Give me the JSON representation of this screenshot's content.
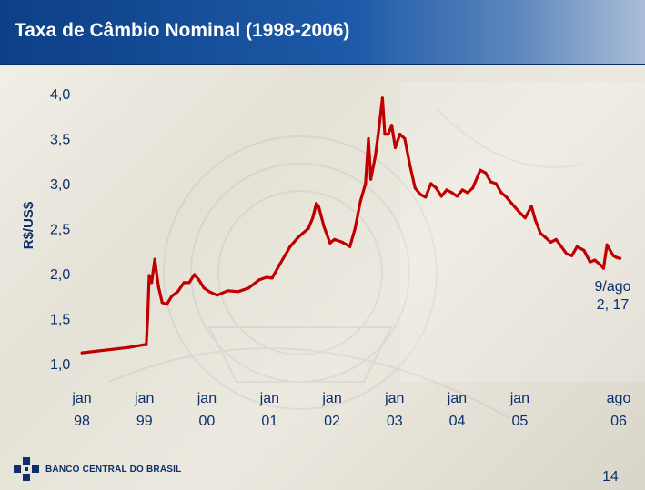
{
  "slide": {
    "title": "Taxa de Câmbio Nominal (1998-2006)",
    "page_number": "14",
    "logo_text": "BANCO CENTRAL DO BRASIL"
  },
  "colors": {
    "title_bar": "#1e5aa8",
    "series": "#c00000",
    "text": "#0c2f6b"
  },
  "chart_data": {
    "type": "line",
    "title": "Taxa de Câmbio Nominal (1998-2006)",
    "ylabel": "R$/US$",
    "xlabel": "",
    "ylim": [
      1.0,
      4.0
    ],
    "yticks": [
      1.0,
      1.5,
      2.0,
      2.5,
      3.0,
      3.5,
      4.0
    ],
    "ytick_labels": [
      "1,0",
      "1,5",
      "2,0",
      "2,5",
      "3,0",
      "3,5",
      "4,0"
    ],
    "xlim": [
      "1998-01",
      "2006-08"
    ],
    "xticks": [
      "1998-01",
      "1999-01",
      "2000-01",
      "2001-01",
      "2002-01",
      "2003-01",
      "2004-01",
      "2005-01",
      "2006-08"
    ],
    "xtick_labels": [
      [
        "jan",
        "98"
      ],
      [
        "jan",
        "99"
      ],
      [
        "jan",
        "00"
      ],
      [
        "jan",
        "01"
      ],
      [
        "jan",
        "02"
      ],
      [
        "jan",
        "03"
      ],
      [
        "jan",
        "04"
      ],
      [
        "jan",
        "05"
      ],
      [
        "ago",
        "06"
      ]
    ],
    "grid": false,
    "series": [
      {
        "values": [
          [
            "1998-01-02",
            1.12
          ],
          [
            "1998-04-01",
            1.14
          ],
          [
            "1998-07-01",
            1.16
          ],
          [
            "1998-10-01",
            1.18
          ],
          [
            "1998-12-31",
            1.21
          ],
          [
            "1999-01-12",
            1.21
          ],
          [
            "1999-01-20",
            1.5
          ],
          [
            "1999-01-29",
            1.98
          ],
          [
            "1999-02-12",
            1.9
          ],
          [
            "1999-03-03",
            2.16
          ],
          [
            "1999-03-12",
            2.02
          ],
          [
            "1999-03-25",
            1.85
          ],
          [
            "1999-04-15",
            1.68
          ],
          [
            "1999-05-12",
            1.66
          ],
          [
            "1999-06-10",
            1.75
          ],
          [
            "1999-07-15",
            1.8
          ],
          [
            "1999-08-20",
            1.9
          ],
          [
            "1999-09-20",
            1.9
          ],
          [
            "1999-10-20",
            1.99
          ],
          [
            "1999-11-15",
            1.93
          ],
          [
            "1999-12-15",
            1.84
          ],
          [
            "2000-01-15",
            1.8
          ],
          [
            "2000-03-01",
            1.76
          ],
          [
            "2000-05-01",
            1.81
          ],
          [
            "2000-07-01",
            1.8
          ],
          [
            "2000-09-01",
            1.84
          ],
          [
            "2000-11-01",
            1.93
          ],
          [
            "2000-12-15",
            1.96
          ],
          [
            "2001-01-15",
            1.95
          ],
          [
            "2001-03-01",
            2.1
          ],
          [
            "2001-05-01",
            2.3
          ],
          [
            "2001-06-15",
            2.4
          ],
          [
            "2001-07-15",
            2.45
          ],
          [
            "2001-08-15",
            2.5
          ],
          [
            "2001-09-10",
            2.62
          ],
          [
            "2001-10-01",
            2.78
          ],
          [
            "2001-10-15",
            2.74
          ],
          [
            "2001-11-15",
            2.52
          ],
          [
            "2001-12-20",
            2.34
          ],
          [
            "2002-01-15",
            2.38
          ],
          [
            "2002-03-01",
            2.35
          ],
          [
            "2002-04-15",
            2.3
          ],
          [
            "2002-05-15",
            2.5
          ],
          [
            "2002-06-15",
            2.8
          ],
          [
            "2002-07-15",
            3.0
          ],
          [
            "2002-08-01",
            3.5
          ],
          [
            "2002-08-15",
            3.05
          ],
          [
            "2002-09-10",
            3.3
          ],
          [
            "2002-10-01",
            3.6
          ],
          [
            "2002-10-22",
            3.95
          ],
          [
            "2002-11-05",
            3.55
          ],
          [
            "2002-11-25",
            3.55
          ],
          [
            "2002-12-15",
            3.65
          ],
          [
            "2003-01-05",
            3.4
          ],
          [
            "2003-02-01",
            3.55
          ],
          [
            "2003-03-01",
            3.5
          ],
          [
            "2003-04-01",
            3.2
          ],
          [
            "2003-05-01",
            2.95
          ],
          [
            "2003-06-01",
            2.88
          ],
          [
            "2003-07-01",
            2.85
          ],
          [
            "2003-08-01",
            3.0
          ],
          [
            "2003-09-01",
            2.95
          ],
          [
            "2003-10-01",
            2.86
          ],
          [
            "2003-11-01",
            2.93
          ],
          [
            "2003-12-01",
            2.9
          ],
          [
            "2004-01-01",
            2.86
          ],
          [
            "2004-02-01",
            2.93
          ],
          [
            "2004-03-01",
            2.9
          ],
          [
            "2004-04-01",
            2.95
          ],
          [
            "2004-05-15",
            3.15
          ],
          [
            "2004-06-15",
            3.12
          ],
          [
            "2004-07-15",
            3.02
          ],
          [
            "2004-08-15",
            3.0
          ],
          [
            "2004-09-15",
            2.9
          ],
          [
            "2004-10-15",
            2.85
          ],
          [
            "2004-11-15",
            2.78
          ],
          [
            "2004-12-31",
            2.68
          ],
          [
            "2005-02-01",
            2.62
          ],
          [
            "2005-03-10",
            2.75
          ],
          [
            "2005-04-01",
            2.6
          ],
          [
            "2005-05-01",
            2.45
          ],
          [
            "2005-06-01",
            2.4
          ],
          [
            "2005-07-01",
            2.35
          ],
          [
            "2005-08-01",
            2.38
          ],
          [
            "2005-09-01",
            2.3
          ],
          [
            "2005-10-01",
            2.22
          ],
          [
            "2005-11-01",
            2.2
          ],
          [
            "2005-12-01",
            2.3
          ],
          [
            "2006-01-10",
            2.26
          ],
          [
            "2006-02-15",
            2.13
          ],
          [
            "2006-03-15",
            2.15
          ],
          [
            "2006-04-15",
            2.1
          ],
          [
            "2006-05-05",
            2.06
          ],
          [
            "2006-05-25",
            2.32
          ],
          [
            "2006-06-15",
            2.25
          ],
          [
            "2006-07-01",
            2.2
          ],
          [
            "2006-07-20",
            2.18
          ],
          [
            "2006-08-09",
            2.17
          ]
        ]
      }
    ],
    "annotation": {
      "lines": [
        "9/ago",
        "2, 17"
      ],
      "date": "2006-08-09",
      "value": 2.17
    }
  }
}
